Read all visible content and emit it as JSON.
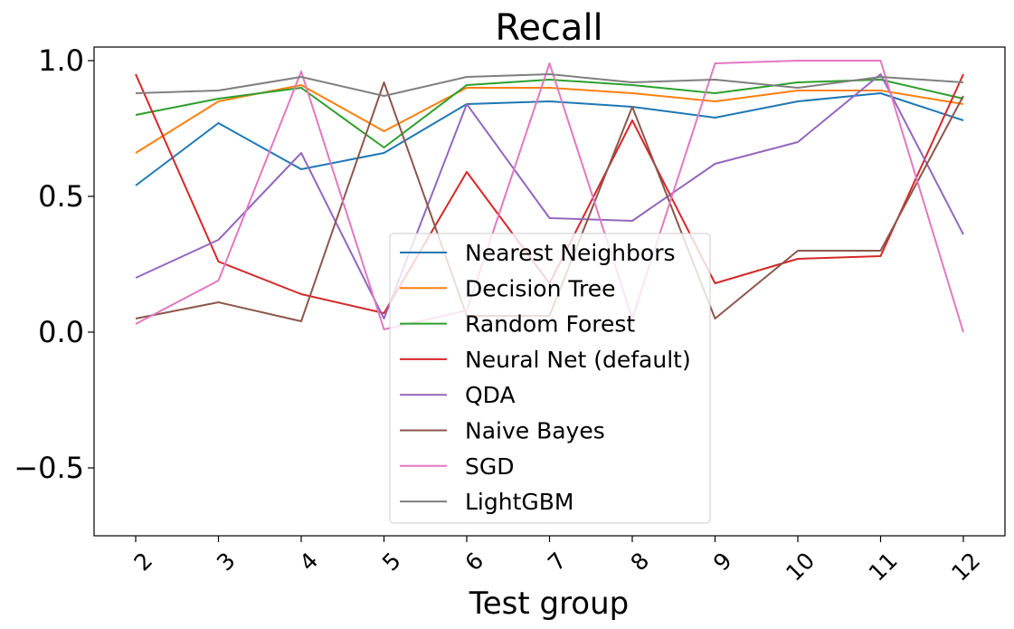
{
  "chart_data": {
    "type": "line",
    "title": "Recall",
    "xlabel": "Test group",
    "ylabel": "",
    "x": [
      "2",
      "3",
      "4",
      "5",
      "6",
      "7",
      "8",
      "9",
      "10",
      "11",
      "12"
    ],
    "yticks": [
      "1.0",
      "0.5",
      "0.0",
      "−0.5"
    ],
    "ytick_values": [
      1.0,
      0.5,
      0.0,
      -0.5
    ],
    "ylim": [
      -0.75,
      1.05
    ],
    "grid": false,
    "legend_position": "center",
    "series": [
      {
        "name": "Nearest Neighbors",
        "color": "#1f77b4",
        "values": [
          0.54,
          0.77,
          0.6,
          0.66,
          0.84,
          0.85,
          0.83,
          0.79,
          0.85,
          0.88,
          0.78
        ]
      },
      {
        "name": "Decision Tree",
        "color": "#ff7f0e",
        "values": [
          0.66,
          0.85,
          0.91,
          0.74,
          0.9,
          0.9,
          0.88,
          0.85,
          0.89,
          0.89,
          0.84
        ]
      },
      {
        "name": "Random Forest",
        "color": "#2ca02c",
        "values": [
          0.8,
          0.86,
          0.9,
          0.68,
          0.91,
          0.93,
          0.91,
          0.88,
          0.92,
          0.93,
          0.86
        ]
      },
      {
        "name": "Neural Net (default)",
        "color": "#d62728",
        "values": [
          0.95,
          0.26,
          0.14,
          0.07,
          0.59,
          0.18,
          0.78,
          0.18,
          0.27,
          0.28,
          0.95
        ]
      },
      {
        "name": "QDA",
        "color": "#9467bd",
        "values": [
          0.2,
          0.34,
          0.66,
          0.05,
          0.84,
          0.42,
          0.41,
          0.62,
          0.7,
          0.95,
          0.36
        ]
      },
      {
        "name": "Naive Bayes",
        "color": "#8c564b",
        "values": [
          0.05,
          0.11,
          0.04,
          0.92,
          0.06,
          0.06,
          0.83,
          0.05,
          0.3,
          0.3,
          0.87
        ]
      },
      {
        "name": "SGD",
        "color": "#e377c2",
        "values": [
          0.03,
          0.19,
          0.96,
          0.01,
          0.08,
          0.99,
          0.05,
          0.99,
          1.0,
          1.0,
          0.0
        ]
      },
      {
        "name": "LightGBM",
        "color": "#7f7f7f",
        "values": [
          0.88,
          0.89,
          0.94,
          0.87,
          0.94,
          0.95,
          0.92,
          0.93,
          0.9,
          0.94,
          0.92
        ]
      }
    ]
  }
}
